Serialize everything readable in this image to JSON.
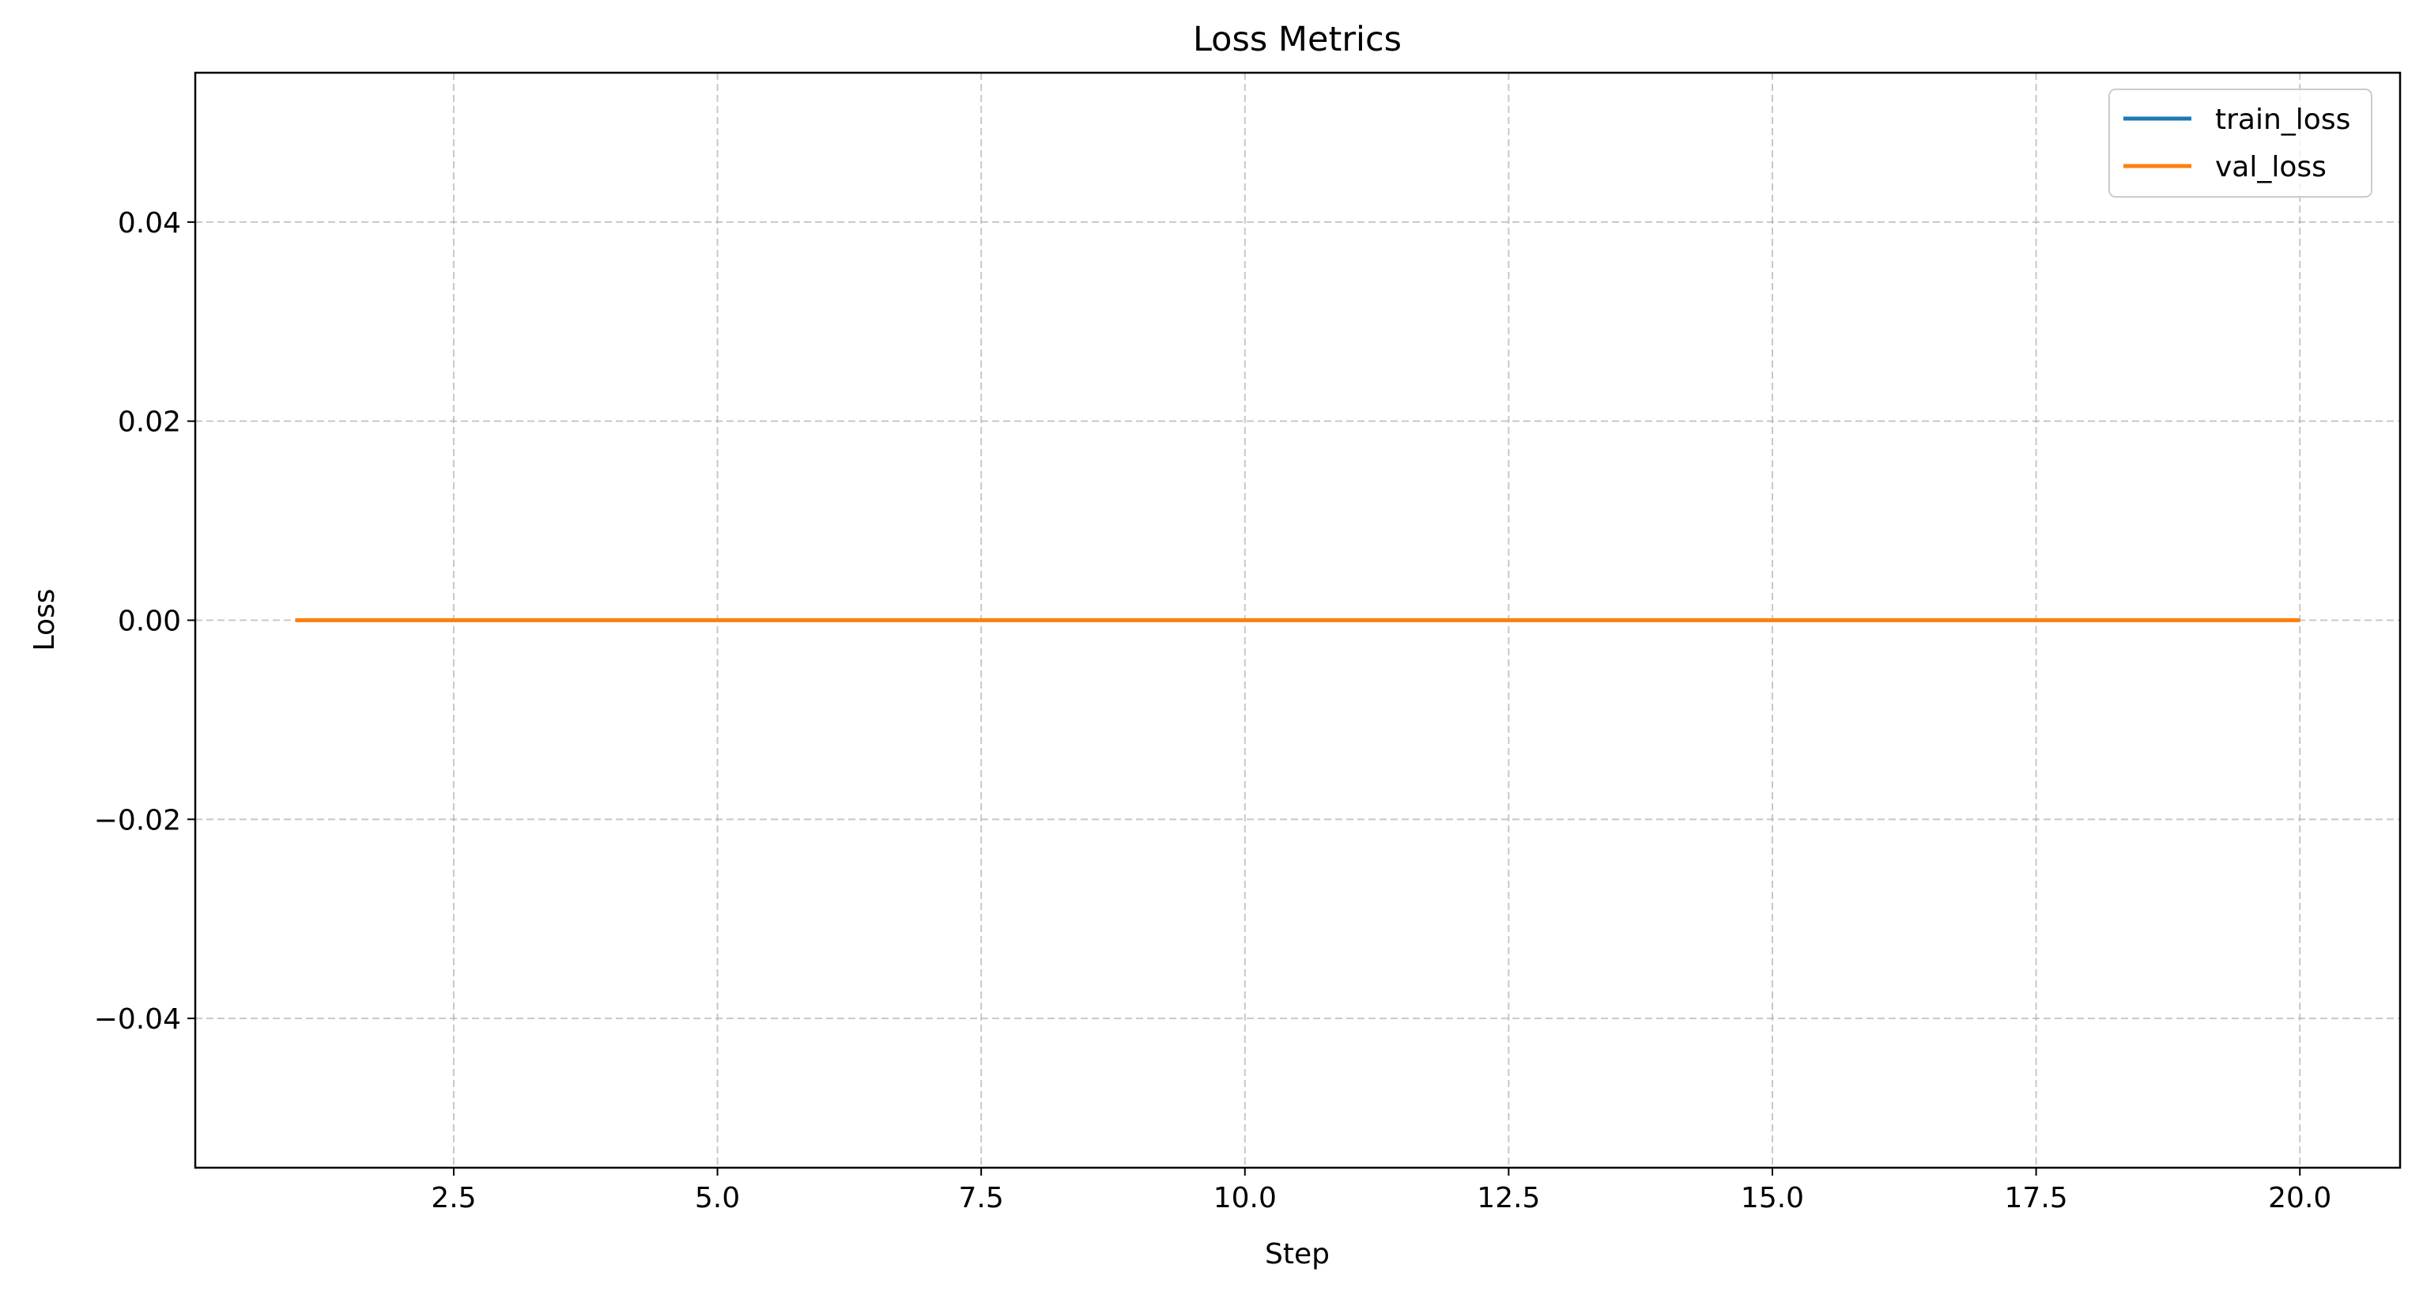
{
  "chart_data": {
    "type": "line",
    "title": "Loss Metrics",
    "xlabel": "Step",
    "ylabel": "Loss",
    "xlim": [
      0.05,
      20.95
    ],
    "ylim": [
      -0.055,
      0.055
    ],
    "xticks": [
      2.5,
      5.0,
      7.5,
      10.0,
      12.5,
      15.0,
      17.5,
      20.0
    ],
    "xtick_labels": [
      "2.5",
      "5.0",
      "7.5",
      "10.0",
      "12.5",
      "15.0",
      "17.5",
      "20.0"
    ],
    "yticks": [
      -0.04,
      -0.02,
      0.0,
      0.02,
      0.04
    ],
    "ytick_labels": [
      "−0.04",
      "−0.02",
      "0.00",
      "0.02",
      "0.04"
    ],
    "grid": true,
    "grid_style": "dashed",
    "legend_position": "top-right",
    "x": [
      1,
      2,
      3,
      4,
      5,
      6,
      7,
      8,
      9,
      10,
      11,
      12,
      13,
      14,
      15,
      16,
      17,
      18,
      19,
      20
    ],
    "series": [
      {
        "name": "train_loss",
        "color": "#1f77b4",
        "values": [
          0,
          0,
          0,
          0,
          0,
          0,
          0,
          0,
          0,
          0,
          0,
          0,
          0,
          0,
          0,
          0,
          0,
          0,
          0,
          0
        ]
      },
      {
        "name": "val_loss",
        "color": "#ff7f0e",
        "values": [
          0,
          0,
          0,
          0,
          0,
          0,
          0,
          0,
          0,
          0,
          0,
          0,
          0,
          0,
          0,
          0,
          0,
          0,
          0,
          0
        ]
      }
    ]
  }
}
